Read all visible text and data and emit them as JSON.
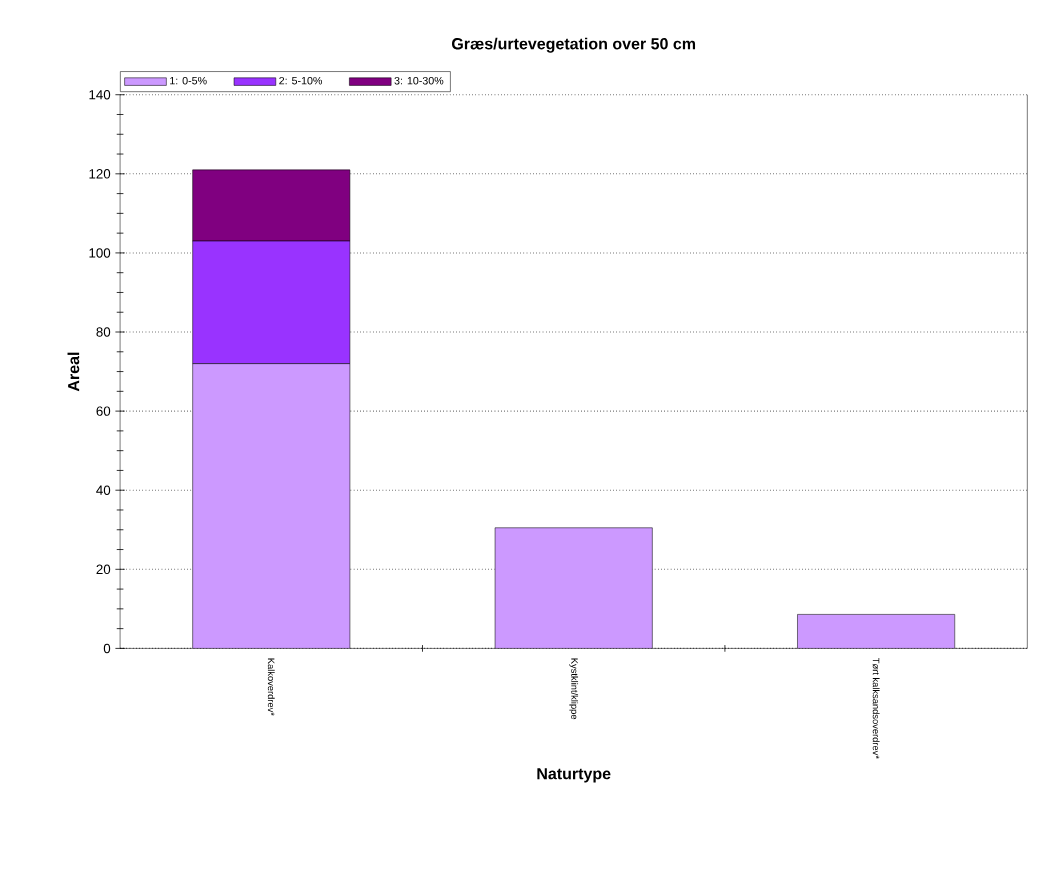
{
  "chart_data": {
    "type": "bar",
    "title": "Græs/urtevegetation over 50 cm",
    "xlabel": "Naturtype",
    "ylabel": "Areal",
    "categories": [
      "Kalkoverdrev*",
      "Kystklint/klippe",
      "Tørt kalksandsoverdrev*"
    ],
    "stacked": true,
    "series": [
      {
        "name": "1: 0-5%",
        "color": "#cc99ff",
        "values": [
          72,
          30.5,
          8.6
        ]
      },
      {
        "name": "2: 5-10%",
        "color": "#9933ff",
        "values": [
          31,
          null,
          null
        ]
      },
      {
        "name": "3: 10-30%",
        "color": "#800080",
        "values": [
          18,
          null,
          null
        ]
      }
    ],
    "ylim": [
      0,
      140
    ],
    "yticks": [
      0,
      20,
      40,
      60,
      80,
      100,
      120,
      140
    ],
    "grid": "y",
    "legend": "top left"
  }
}
